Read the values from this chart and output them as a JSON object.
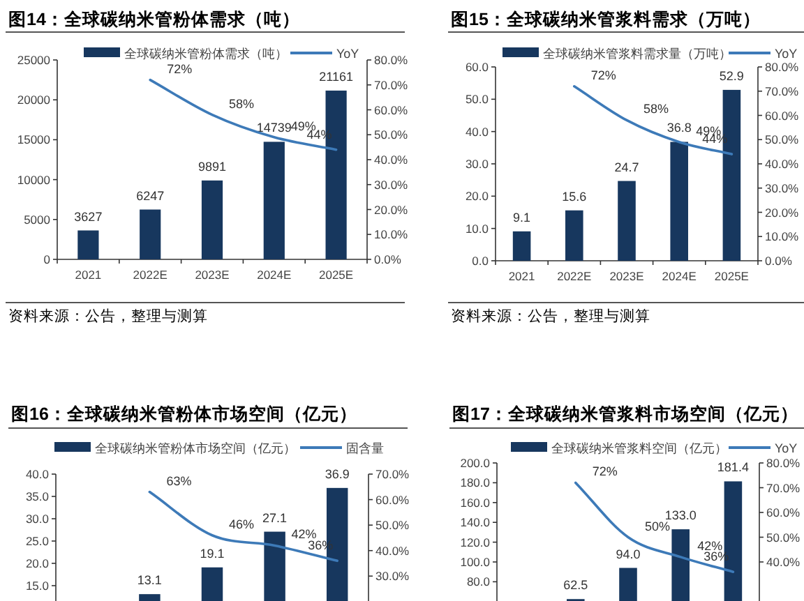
{
  "chart_data": [
    {
      "type": "bar",
      "title": "图14：全球碳纳米管粉体需求（吨）",
      "annotations": [
        "资料来源：公告，整理与测算"
      ],
      "categories": [
        "2021",
        "2022E",
        "2023E",
        "2024E",
        "2025E"
      ],
      "legend": "top",
      "series": [
        {
          "name": "全球碳纳米管粉体需求（吨）",
          "color": "#17375e",
          "values": [
            3627,
            6247,
            9891,
            14739,
            21161
          ],
          "value_labels": [
            "3627",
            "6247",
            "9891",
            "14739",
            "21161"
          ]
        },
        {
          "name": "YoY",
          "type": "line",
          "axis": "y2",
          "color": "#3d7ab8",
          "values": [
            null,
            72,
            58,
            49,
            44
          ],
          "value_labels": [
            null,
            "72%",
            "58%",
            "49%",
            "44%"
          ]
        }
      ],
      "ylim": [
        0,
        25000
      ],
      "yticks": [
        0,
        5000,
        10000,
        15000,
        20000,
        25000
      ],
      "y2lim": [
        0,
        80
      ],
      "y2ticks": [
        {
          "value": 0,
          "label": "0.0%"
        },
        {
          "value": 10,
          "label": "10.0%"
        },
        {
          "value": 20,
          "label": "20.0%"
        },
        {
          "value": 30,
          "label": "30.0%"
        },
        {
          "value": 40,
          "label": "40.0%"
        },
        {
          "value": 50,
          "label": "50.0%"
        },
        {
          "value": 60,
          "label": "60.0%"
        },
        {
          "value": 70,
          "label": "70.0%"
        },
        {
          "value": 80,
          "label": "80.0%"
        }
      ]
    },
    {
      "type": "bar",
      "title": "图15：全球碳纳米管浆料需求（万吨）",
      "annotations": [
        "资料来源：公告，整理与测算"
      ],
      "categories": [
        "2021",
        "2022E",
        "2023E",
        "2024E",
        "2025E"
      ],
      "legend": "top",
      "series": [
        {
          "name": "全球碳纳米管浆料需求量（万吨）",
          "color": "#17375e",
          "values": [
            9.1,
            15.6,
            24.7,
            36.8,
            52.9
          ],
          "value_labels": [
            "9.1",
            "15.6",
            "24.7",
            "36.8",
            "52.9"
          ]
        },
        {
          "name": "YoY",
          "type": "line",
          "axis": "y2",
          "color": "#3d7ab8",
          "values": [
            null,
            72,
            58,
            49,
            44
          ],
          "value_labels": [
            null,
            "72%",
            "58%",
            "49%",
            "44%"
          ]
        }
      ],
      "ylim": [
        0,
        60
      ],
      "yticks": [
        {
          "value": 0,
          "label": "0.0"
        },
        {
          "value": 10,
          "label": "10.0"
        },
        {
          "value": 20,
          "label": "20.0"
        },
        {
          "value": 30,
          "label": "30.0"
        },
        {
          "value": 40,
          "label": "40.0"
        },
        {
          "value": 50,
          "label": "50.0"
        },
        {
          "value": 60,
          "label": "60.0"
        }
      ],
      "y2lim": [
        0,
        80
      ],
      "y2ticks": [
        {
          "value": 0,
          "label": "0.0%"
        },
        {
          "value": 10,
          "label": "10.0%"
        },
        {
          "value": 20,
          "label": "20.0%"
        },
        {
          "value": 30,
          "label": "30.0%"
        },
        {
          "value": 40,
          "label": "40.0%"
        },
        {
          "value": 50,
          "label": "50.0%"
        },
        {
          "value": 60,
          "label": "60.0%"
        },
        {
          "value": 70,
          "label": "70.0%"
        },
        {
          "value": 80,
          "label": "80.0%"
        }
      ]
    },
    {
      "type": "bar",
      "title": "图16：全球碳纳米管粉体市场空间（亿元）",
      "categories": [
        null,
        null,
        null,
        null,
        null
      ],
      "legend": "top",
      "series": [
        {
          "name": "全球碳纳米管粉体市场空间（亿元）",
          "color": "#17375e",
          "values": [
            null,
            13.1,
            19.1,
            27.1,
            36.9
          ],
          "value_labels": [
            null,
            "13.1",
            "19.1",
            "27.1",
            "36.9"
          ]
        },
        {
          "name": "固含量",
          "type": "line",
          "axis": "y2",
          "color": "#3d7ab8",
          "values": [
            null,
            63,
            46,
            42,
            36
          ],
          "value_labels": [
            null,
            "63%",
            "46%",
            "42%",
            "36%"
          ]
        }
      ],
      "ylim": [
        0,
        40
      ],
      "yticks": [
        {
          "value": 15,
          "label": "15.0"
        },
        {
          "value": 20,
          "label": "20.0"
        },
        {
          "value": 25,
          "label": "25.0"
        },
        {
          "value": 30,
          "label": "30.0"
        },
        {
          "value": 35,
          "label": "35.0"
        },
        {
          "value": 40,
          "label": "40.0"
        }
      ],
      "y2lim": [
        0,
        70
      ],
      "y2ticks": [
        {
          "value": 30,
          "label": "30.0%"
        },
        {
          "value": 40,
          "label": "40.0%"
        },
        {
          "value": 50,
          "label": "50.0%"
        },
        {
          "value": 60,
          "label": "60.0%"
        },
        {
          "value": 70,
          "label": "70.0%"
        }
      ]
    },
    {
      "type": "bar",
      "title": "图17：全球碳纳米管浆料市场空间（亿元）",
      "categories": [
        null,
        null,
        null,
        null,
        null
      ],
      "legend": "top",
      "series": [
        {
          "name": "全球碳纳米管浆料空间（亿元）",
          "color": "#17375e",
          "values": [
            null,
            62.5,
            94.0,
            133.0,
            181.4
          ],
          "value_labels": [
            null,
            "62.5",
            "94.0",
            "133.0",
            "181.4"
          ]
        },
        {
          "name": "YoY",
          "type": "line",
          "axis": "y2",
          "color": "#3d7ab8",
          "values": [
            null,
            72,
            50,
            42,
            36
          ],
          "value_labels": [
            null,
            "72%",
            "50%",
            "42%",
            "36%"
          ]
        }
      ],
      "ylim": [
        0,
        200
      ],
      "yticks": [
        {
          "value": 80,
          "label": "80.0"
        },
        {
          "value": 100,
          "label": "100.0"
        },
        {
          "value": 120,
          "label": "120.0"
        },
        {
          "value": 140,
          "label": "140.0"
        },
        {
          "value": 160,
          "label": "160.0"
        },
        {
          "value": 180,
          "label": "180.0"
        },
        {
          "value": 200,
          "label": "200.0"
        }
      ],
      "y2lim": [
        0,
        80
      ],
      "y2ticks": [
        {
          "value": 40,
          "label": "40.0%"
        },
        {
          "value": 50,
          "label": "50.0%"
        },
        {
          "value": 60,
          "label": "60.0%"
        },
        {
          "value": 70,
          "label": "70.0%"
        },
        {
          "value": 80,
          "label": "80.0%"
        }
      ]
    }
  ]
}
